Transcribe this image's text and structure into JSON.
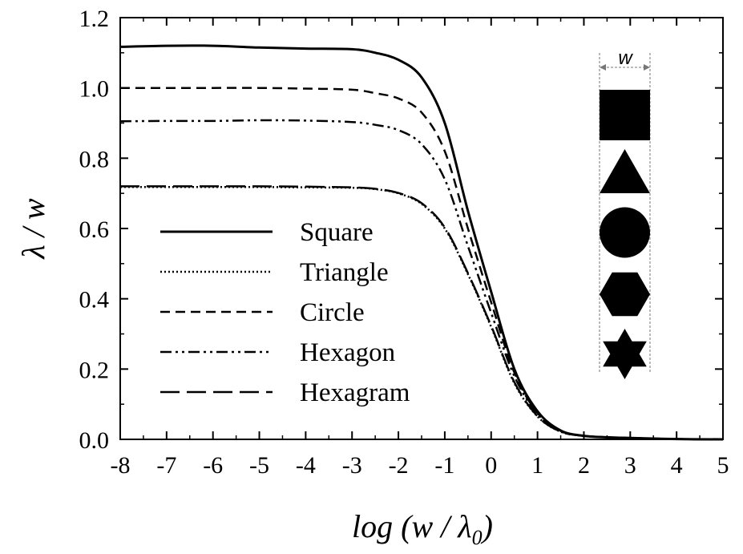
{
  "chart_data": {
    "type": "line",
    "xlabel": "log (w / λ",
    "xlabel_sub": "0",
    "xlabel_close": ")",
    "ylabel": "λ / w",
    "xlim": [
      -8,
      5
    ],
    "ylim": [
      0,
      1.2
    ],
    "x_ticks": [
      -8,
      -7,
      -6,
      -5,
      -4,
      -3,
      -2,
      -1,
      0,
      1,
      2,
      3,
      4,
      5
    ],
    "x_tick_labels": [
      "-8",
      "-7",
      "-6",
      "-5",
      "-4",
      "-3",
      "-2",
      "-1",
      "0",
      "1",
      "2",
      "3",
      "4",
      "5"
    ],
    "y_ticks": [
      0,
      0.2,
      0.4,
      0.6,
      0.8,
      1.0,
      1.2
    ],
    "y_tick_labels": [
      "0.0",
      "0.2",
      "0.4",
      "0.6",
      "0.8",
      "1.0",
      "1.2"
    ],
    "grid": false,
    "legend_position": "bottom-left",
    "inset_label": "w",
    "inset_shapes": [
      "square",
      "triangle",
      "circle",
      "hexagon",
      "hexagram"
    ],
    "series": [
      {
        "name": "Square",
        "dash": "solid",
        "x": [
          -8,
          -7,
          -6,
          -5,
          -4,
          -3,
          -2.5,
          -2,
          -1.5,
          -1,
          -0.5,
          0,
          0.5,
          1,
          1.5,
          2,
          2.5,
          3,
          4,
          5
        ],
        "y": [
          1.117,
          1.12,
          1.12,
          1.115,
          1.112,
          1.11,
          1.1,
          1.08,
          1.03,
          0.9,
          0.65,
          0.42,
          0.2,
          0.08,
          0.025,
          0.01,
          0.006,
          0.004,
          0.001,
          0.0
        ]
      },
      {
        "name": "Triangle",
        "dash": "dotted",
        "x": [
          -8,
          -7,
          -6,
          -5,
          -4,
          -3,
          -2.5,
          -2,
          -1.5,
          -1,
          -0.5,
          0,
          0.5,
          1,
          1.5,
          2,
          2.5,
          3,
          4,
          5
        ],
        "y": [
          0.718,
          0.718,
          0.718,
          0.718,
          0.717,
          0.716,
          0.712,
          0.7,
          0.67,
          0.6,
          0.47,
          0.32,
          0.16,
          0.065,
          0.022,
          0.01,
          0.006,
          0.004,
          0.001,
          0.0
        ]
      },
      {
        "name": "Circle",
        "dash": "dashed",
        "x": [
          -8,
          -7,
          -6,
          -5,
          -4,
          -3,
          -2.5,
          -2,
          -1.5,
          -1,
          -0.5,
          0,
          0.5,
          1,
          1.5,
          2,
          2.5,
          3,
          4,
          5
        ],
        "y": [
          1.0,
          1.0,
          1.0,
          1.0,
          0.998,
          0.995,
          0.985,
          0.97,
          0.93,
          0.82,
          0.6,
          0.39,
          0.19,
          0.075,
          0.024,
          0.01,
          0.006,
          0.004,
          0.001,
          0.0
        ]
      },
      {
        "name": "Hexagon",
        "dash": "dash-dot-dot",
        "x": [
          -8,
          -7,
          -6,
          -5,
          -4,
          -3,
          -2.5,
          -2,
          -1.5,
          -1,
          -0.5,
          0,
          0.5,
          1,
          1.5,
          2,
          2.5,
          3,
          4,
          5
        ],
        "y": [
          0.905,
          0.906,
          0.906,
          0.908,
          0.907,
          0.903,
          0.895,
          0.88,
          0.84,
          0.74,
          0.55,
          0.36,
          0.18,
          0.072,
          0.023,
          0.01,
          0.006,
          0.004,
          0.001,
          0.0
        ]
      },
      {
        "name": "Hexagram",
        "dash": "long-dash",
        "x": [
          -8,
          -7,
          -6,
          -5,
          -4,
          -3,
          -2.5,
          -2,
          -1.5,
          -1,
          -0.5,
          0,
          0.5,
          1,
          1.5,
          2,
          2.5,
          3,
          4,
          5
        ],
        "y": [
          0.72,
          0.72,
          0.72,
          0.72,
          0.719,
          0.717,
          0.713,
          0.701,
          0.672,
          0.603,
          0.473,
          0.323,
          0.163,
          0.066,
          0.022,
          0.01,
          0.006,
          0.004,
          0.001,
          0.0
        ]
      }
    ]
  }
}
